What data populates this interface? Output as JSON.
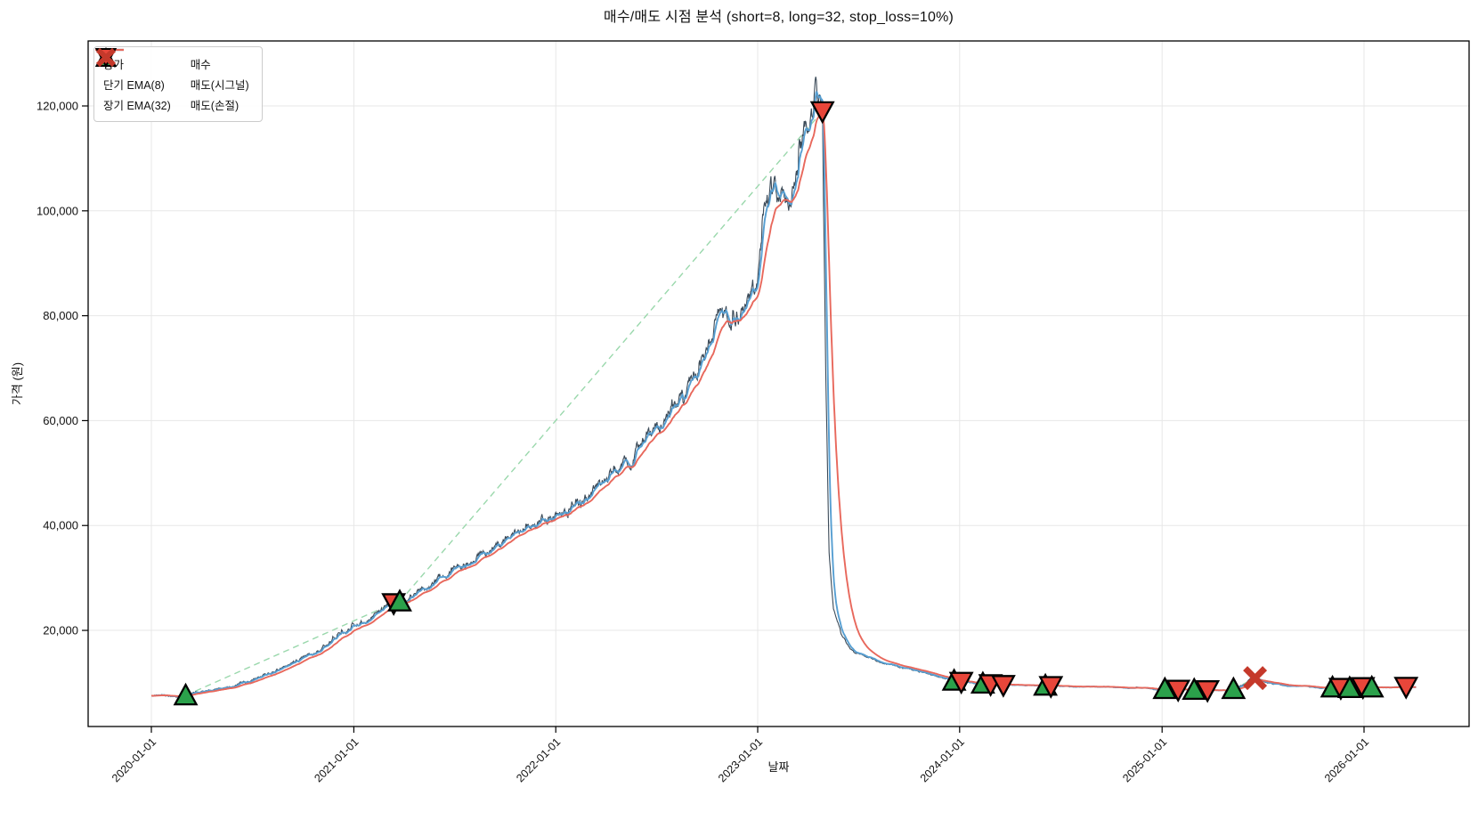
{
  "title": "매수/매도 시점 분석 (short=8, long=32, stop_loss=10%)",
  "colors": {
    "close_line": "#3b4a58",
    "ema_short": "#579fd2",
    "ema_long": "#e8685c",
    "buy_green": "#2ba14b",
    "sell_red": "#e8463a",
    "stop_red": "#c5392b",
    "trade_dash": "#9ad8ac",
    "grid": "#e7e7e7",
    "axis": "#000000",
    "text": "#111111"
  },
  "legend": {
    "lines": [
      {
        "label": "종가"
      },
      {
        "label": "단기 EMA(8)"
      },
      {
        "label": "장기 EMA(32)"
      }
    ],
    "markers": [
      {
        "label": "매수",
        "type": "buy"
      },
      {
        "label": "매도(시그널)",
        "type": "sell-signal"
      },
      {
        "label": "매도(손절)",
        "type": "sell-stoploss"
      }
    ]
  },
  "chart_data": {
    "type": "line",
    "title": "매수/매도 시점 분석 (short=8, long=32, stop_loss=10%)",
    "xlabel": "날짜",
    "ylabel": "가격 (원)",
    "grid": true,
    "legend_position": "upper left",
    "x_ticks": [
      "2020-01-01",
      "2021-01-01",
      "2022-01-01",
      "2023-01-01",
      "2024-01-01",
      "2025-01-01",
      "2026-01-01"
    ],
    "y_ticks": [
      {
        "value": 20000,
        "label": "20,000"
      },
      {
        "value": 40000,
        "label": "40,000"
      },
      {
        "value": 60000,
        "label": "60,000"
      },
      {
        "value": 80000,
        "label": "80,000"
      },
      {
        "value": 100000,
        "label": "100,000"
      },
      {
        "value": 120000,
        "label": "120,000"
      }
    ],
    "ylim": [
      1600,
      132400
    ],
    "xlim": [
      "2019-09-09",
      "2026-07-28"
    ],
    "series": [
      {
        "name": "종가",
        "role": "close",
        "keypoints": [
          [
            "2020-01-01",
            7600
          ],
          [
            "2020-02-20",
            7450
          ],
          [
            "2020-03-03",
            7600
          ],
          [
            "2020-05-01",
            8800
          ],
          [
            "2020-07-01",
            10500
          ],
          [
            "2020-09-01",
            13000
          ],
          [
            "2020-11-01",
            16200
          ],
          [
            "2021-01-01",
            21000
          ],
          [
            "2021-02-15",
            23500
          ],
          [
            "2021-03-14",
            25200
          ],
          [
            "2021-03-25",
            25500
          ],
          [
            "2021-04-12",
            26300
          ],
          [
            "2021-06-01",
            29500
          ],
          [
            "2021-08-01",
            33500
          ],
          [
            "2021-10-01",
            37000
          ],
          [
            "2021-11-15",
            40000
          ],
          [
            "2022-01-01",
            42000
          ],
          [
            "2022-02-15",
            44000
          ],
          [
            "2022-03-25",
            47500
          ],
          [
            "2022-04-15",
            50500
          ],
          [
            "2022-06-01",
            55000
          ],
          [
            "2022-07-15",
            60000
          ],
          [
            "2022-08-20",
            65000
          ],
          [
            "2022-10-01",
            72000
          ],
          [
            "2022-10-22",
            80000
          ],
          [
            "2022-11-10",
            81500
          ],
          [
            "2022-12-10",
            80000
          ],
          [
            "2023-01-01",
            86000
          ],
          [
            "2023-01-12",
            97000
          ],
          [
            "2023-01-25",
            104000
          ],
          [
            "2023-02-10",
            101000
          ],
          [
            "2023-03-01",
            104500
          ],
          [
            "2023-03-20",
            110000
          ],
          [
            "2023-04-08",
            119000
          ],
          [
            "2023-04-16",
            126000
          ],
          [
            "2023-04-22",
            121500
          ],
          [
            "2023-04-28",
            119000
          ],
          [
            "2023-05-04",
            70000
          ],
          [
            "2023-05-10",
            35000
          ],
          [
            "2023-05-18",
            24000
          ],
          [
            "2023-06-01",
            19000
          ],
          [
            "2023-06-20",
            16500
          ],
          [
            "2023-07-10",
            15200
          ],
          [
            "2023-08-10",
            14000
          ],
          [
            "2023-09-10",
            13200
          ],
          [
            "2023-10-15",
            12400
          ],
          [
            "2023-11-15",
            11400
          ],
          [
            "2023-12-22",
            10400
          ],
          [
            "2024-01-04",
            10200
          ],
          [
            "2024-02-12",
            9850
          ],
          [
            "2024-03-20",
            9600
          ],
          [
            "2024-06-04",
            9450
          ],
          [
            "2024-08-01",
            9300
          ],
          [
            "2024-10-01",
            9150
          ],
          [
            "2024-12-01",
            8950
          ],
          [
            "2025-01-06",
            8800
          ],
          [
            "2025-02-10",
            8700
          ],
          [
            "2025-03-24",
            8600
          ],
          [
            "2025-04-15",
            8550
          ],
          [
            "2025-05-10",
            8800
          ],
          [
            "2025-06-01",
            9800
          ],
          [
            "2025-06-15",
            11400
          ],
          [
            "2025-06-22",
            10600
          ],
          [
            "2025-07-10",
            10000
          ],
          [
            "2025-08-01",
            9600
          ],
          [
            "2025-09-01",
            9350
          ],
          [
            "2025-10-01",
            9200
          ],
          [
            "2025-11-05",
            9100
          ],
          [
            "2025-12-06",
            9000
          ],
          [
            "2025-12-30",
            9200
          ],
          [
            "2026-01-15",
            9100
          ],
          [
            "2026-02-20",
            9050
          ],
          [
            "2026-03-18",
            9250
          ],
          [
            "2026-04-05",
            9150
          ]
        ]
      },
      {
        "name": "단기 EMA(8)",
        "role": "ema",
        "span": 8
      },
      {
        "name": "장기 EMA(32)",
        "role": "ema",
        "span": 32
      }
    ],
    "signals": [
      {
        "date": "2020-03-03",
        "price": 7600,
        "type": "buy"
      },
      {
        "date": "2021-03-14",
        "price": 25200,
        "type": "sell-signal"
      },
      {
        "date": "2021-03-25",
        "price": 25500,
        "type": "buy"
      },
      {
        "date": "2023-04-28",
        "price": 119000,
        "type": "sell-signal"
      },
      {
        "date": "2023-12-22",
        "price": 10400,
        "type": "buy"
      },
      {
        "date": "2024-01-04",
        "price": 10200,
        "type": "sell-signal"
      },
      {
        "date": "2024-02-12",
        "price": 9850,
        "type": "buy"
      },
      {
        "date": "2024-02-26",
        "price": 9750,
        "type": "sell-signal"
      },
      {
        "date": "2024-03-20",
        "price": 9600,
        "type": "sell-signal"
      },
      {
        "date": "2024-06-04",
        "price": 9450,
        "type": "buy"
      },
      {
        "date": "2024-06-14",
        "price": 9400,
        "type": "sell-signal"
      },
      {
        "date": "2025-01-06",
        "price": 8800,
        "type": "buy"
      },
      {
        "date": "2025-01-30",
        "price": 8700,
        "type": "sell-signal"
      },
      {
        "date": "2025-02-28",
        "price": 8650,
        "type": "buy"
      },
      {
        "date": "2025-03-24",
        "price": 8600,
        "type": "sell-signal"
      },
      {
        "date": "2025-05-10",
        "price": 8800,
        "type": "buy"
      },
      {
        "date": "2025-06-18",
        "price": 10900,
        "type": "sell-stoploss"
      },
      {
        "date": "2025-11-05",
        "price": 9100,
        "type": "buy"
      },
      {
        "date": "2025-11-20",
        "price": 9050,
        "type": "sell-signal"
      },
      {
        "date": "2025-12-06",
        "price": 9000,
        "type": "buy"
      },
      {
        "date": "2025-12-30",
        "price": 9200,
        "type": "sell-signal"
      },
      {
        "date": "2026-01-15",
        "price": 9100,
        "type": "buy"
      },
      {
        "date": "2026-03-18",
        "price": 9250,
        "type": "sell-signal"
      }
    ]
  }
}
